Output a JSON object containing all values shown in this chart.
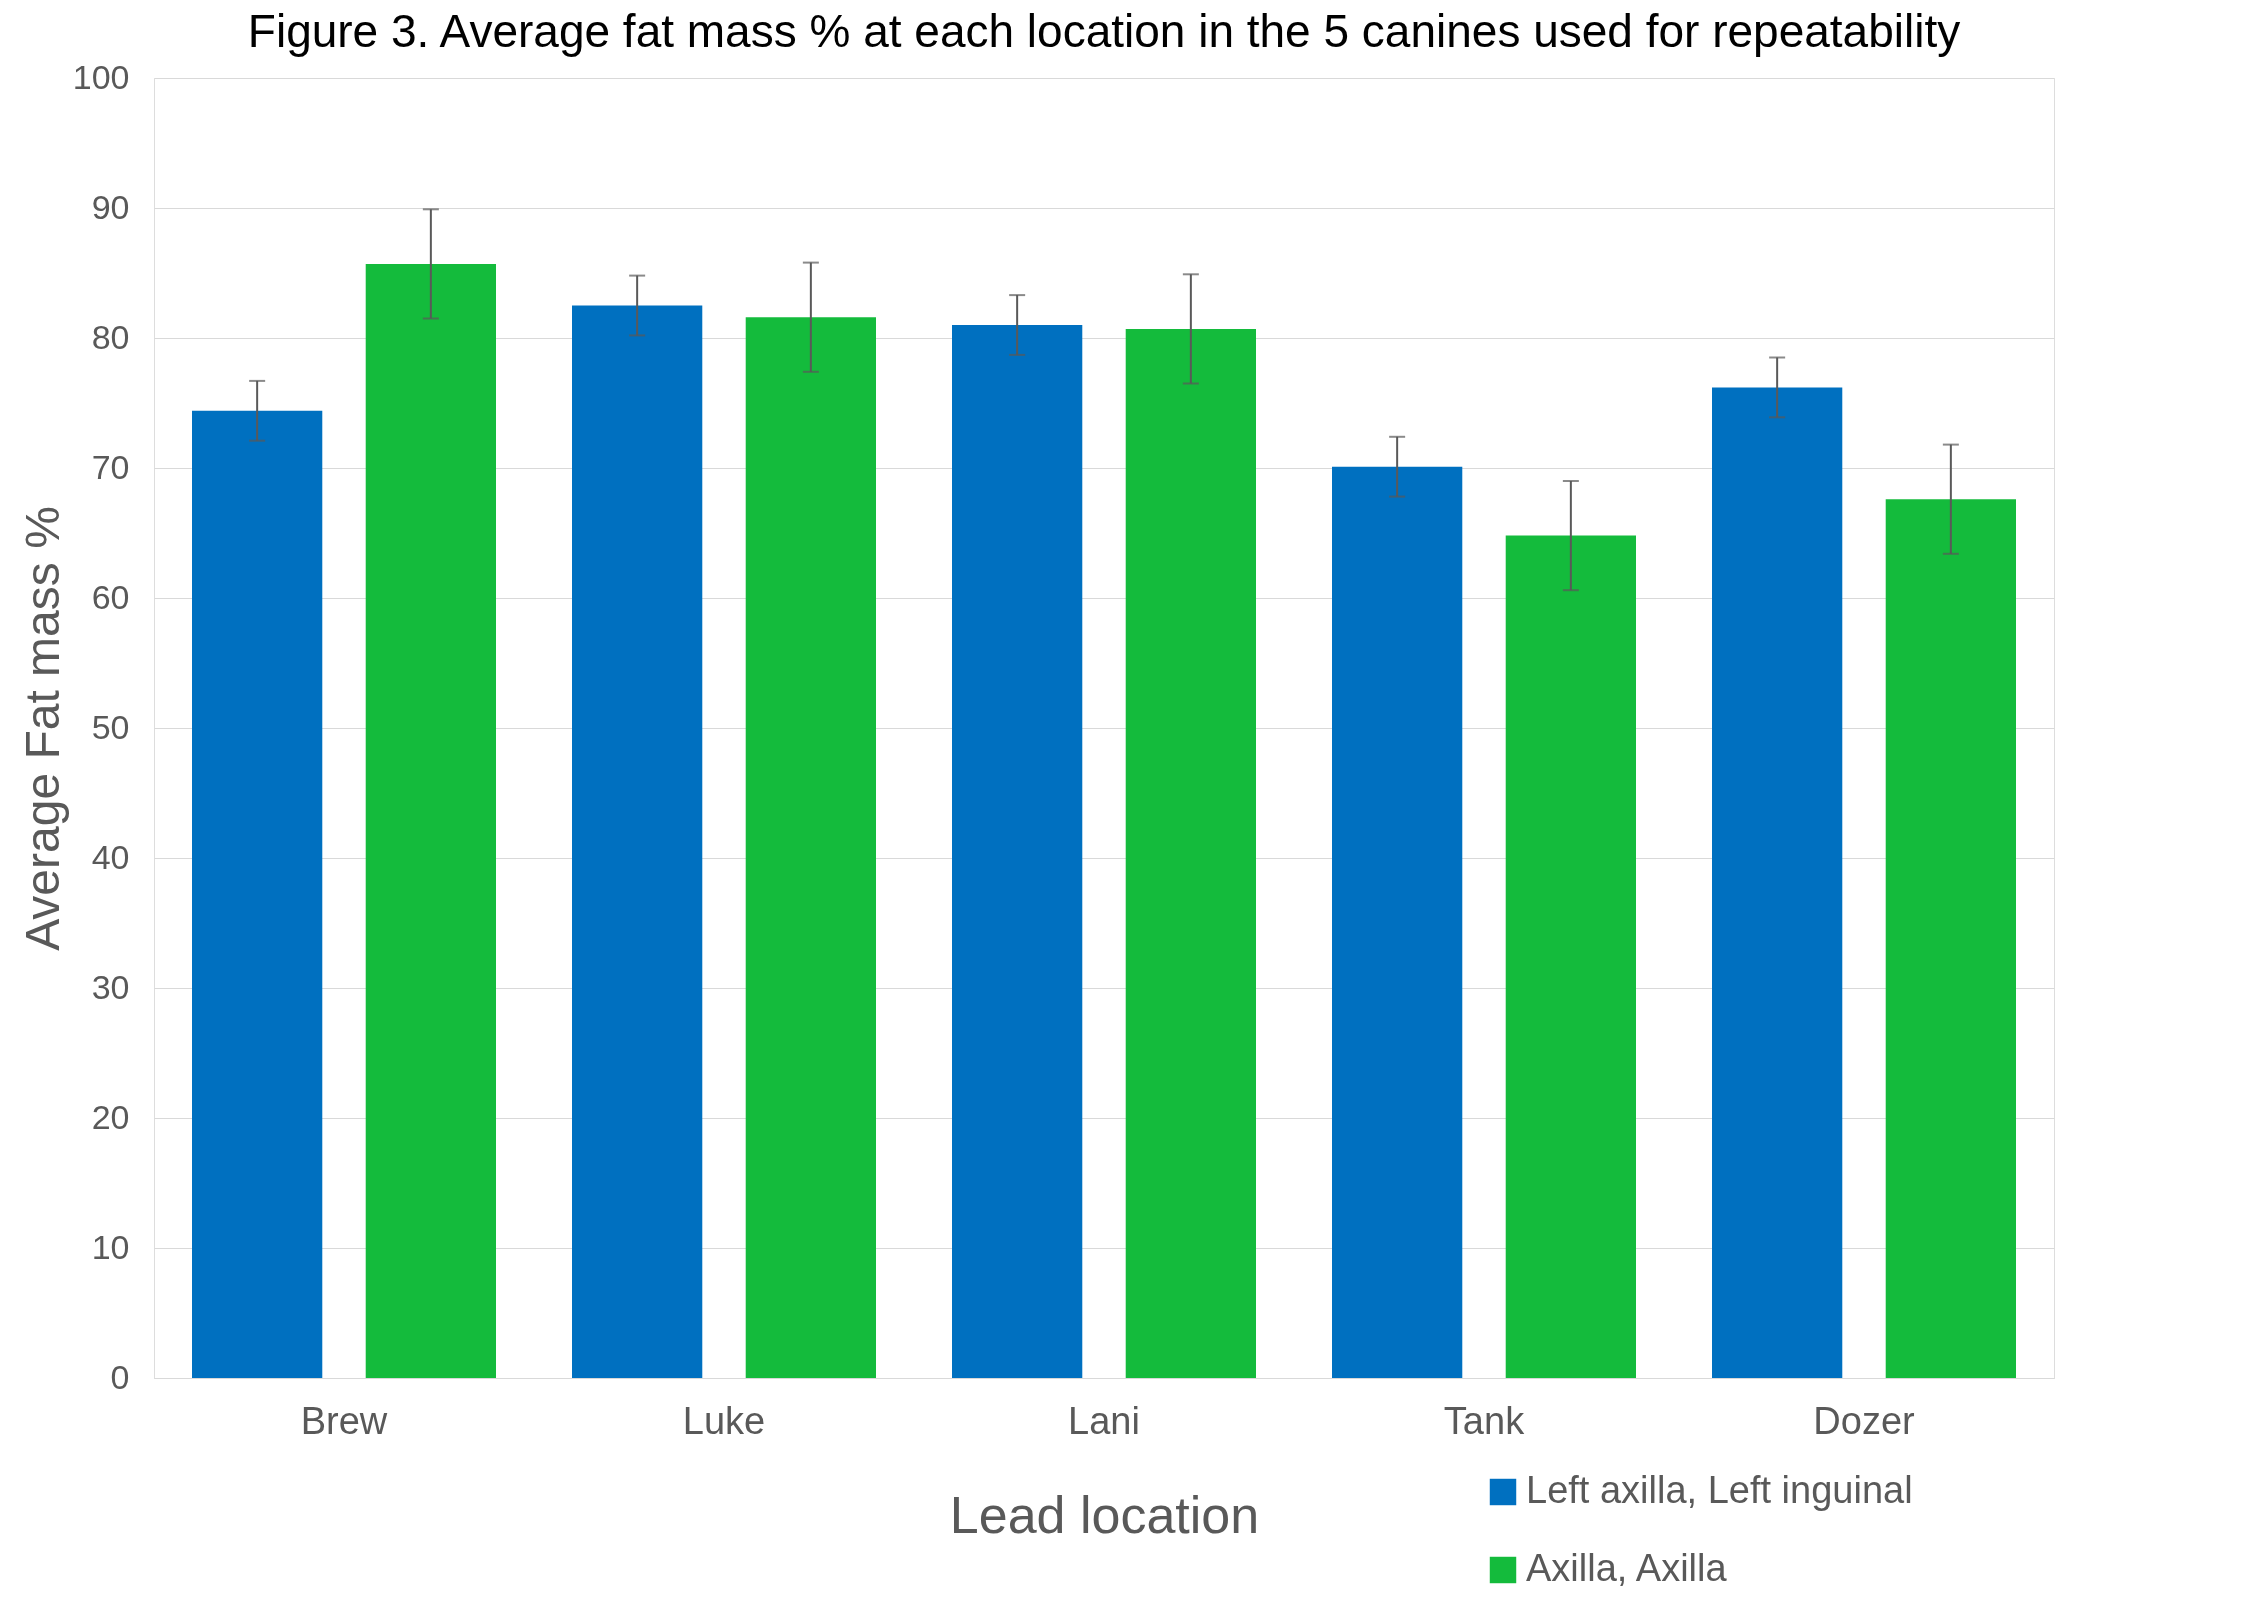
{
  "chart_data": {
    "type": "bar",
    "title": "Figure 3. Average fat mass % at each location in the 5 canines used for repeatability",
    "xlabel": "Lead location",
    "ylabel": "Average Fat mass %",
    "categories": [
      "Brew",
      "Luke",
      "Lani",
      "Tank",
      "Dozer"
    ],
    "series": [
      {
        "name": "Left axilla, Left inguinal",
        "color": "#0070c0",
        "values": [
          74.4,
          82.5,
          81.0,
          70.1,
          76.2
        ],
        "errors": [
          2.3,
          2.3,
          2.3,
          2.3,
          2.3
        ]
      },
      {
        "name": "Axilla, Axilla",
        "color": "#14bb3c",
        "values": [
          85.7,
          81.6,
          80.7,
          64.8,
          67.6
        ],
        "errors": [
          4.2,
          4.2,
          4.2,
          4.2,
          4.2
        ]
      }
    ],
    "ylim": [
      0,
      100
    ],
    "yticks": [
      0,
      10,
      20,
      30,
      40,
      50,
      60,
      70,
      80,
      90,
      100
    ],
    "grid": "y",
    "legend": "bottom right"
  }
}
